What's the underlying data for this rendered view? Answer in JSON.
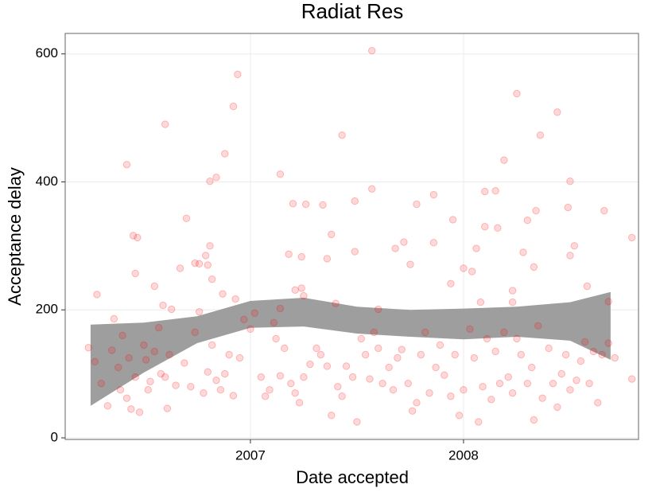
{
  "chart_data": {
    "type": "scatter",
    "title": "Radiat Res",
    "x_label": "Date accepted",
    "y_label": "Acceptance delay",
    "xlim": [
      2006.131,
      2008.821
    ],
    "ylim": [
      -2.5,
      632
    ],
    "xticks": [
      2007,
      2008
    ],
    "yticks": [
      0,
      200,
      400,
      600
    ],
    "grid": true,
    "series": [
      {
        "color": "#ff0000",
        "x": [
          2007.57,
          2006.94,
          2006.92,
          2008.25,
          2008.44,
          2006.6,
          2008.36,
          2007.43,
          2008.19,
          2006.42,
          2007.14,
          2008.5,
          2006.88,
          2006.84,
          2006.81,
          2007.57,
          2008.1,
          2008.15,
          2007.86,
          2007.49,
          2007.2,
          2007.26,
          2007.34,
          2007.78,
          2008.49,
          2008.66,
          2007.95,
          2008.3,
          2008.34,
          2006.7,
          2006.45,
          2006.47,
          2007.38,
          2008.79,
          2007.72,
          2007.86,
          2008.1,
          2008.16,
          2008.52,
          2006.81,
          2007.68,
          2007.49,
          2007.18,
          2008.06,
          2008.28,
          2008.5,
          2006.79,
          2007.24,
          2007.36,
          2006.74,
          2006.76,
          2006.67,
          2006.8,
          2007.75,
          2008.33,
          2008.0,
          2008.04,
          2006.46,
          2006.82,
          2006.55,
          2007.24,
          2007.94,
          2008.23,
          2008.58,
          2007.21,
          2006.28,
          2006.87,
          2006.93,
          2007.25,
          2008.68,
          2008.23,
          2006.59,
          2007.4,
          2008.08,
          2007.6,
          2007.14,
          2006.63,
          2006.76,
          2006.24,
          2006.27,
          2006.3,
          2006.33,
          2006.35,
          2006.36,
          2006.38,
          2006.39,
          2006.4,
          2006.42,
          2006.43,
          2006.44,
          2006.46,
          2006.48,
          2006.5,
          2006.51,
          2006.52,
          2006.53,
          2006.55,
          2006.57,
          2006.58,
          2006.6,
          2006.61,
          2006.62,
          2006.65,
          2006.69,
          2006.72,
          2006.74,
          2006.78,
          2006.8,
          2006.82,
          2006.84,
          2006.86,
          2006.88,
          2006.9,
          2006.92,
          2006.95,
          2006.97,
          2007.0,
          2007.02,
          2007.05,
          2007.07,
          2007.09,
          2007.11,
          2007.12,
          2007.14,
          2007.16,
          2007.19,
          2007.21,
          2007.23,
          2007.25,
          2007.28,
          2007.31,
          2007.33,
          2007.36,
          2007.38,
          2007.41,
          2007.43,
          2007.45,
          2007.48,
          2007.5,
          2007.52,
          2007.54,
          2007.56,
          2007.58,
          2007.6,
          2007.62,
          2007.65,
          2007.67,
          2007.69,
          2007.71,
          2007.74,
          2007.76,
          2007.78,
          2007.8,
          2007.82,
          2007.84,
          2007.87,
          2007.89,
          2007.91,
          2007.94,
          2007.96,
          2007.98,
          2008.0,
          2008.03,
          2008.05,
          2008.07,
          2008.09,
          2008.11,
          2008.13,
          2008.15,
          2008.17,
          2008.19,
          2008.21,
          2008.23,
          2008.25,
          2008.27,
          2008.3,
          2008.32,
          2008.33,
          2008.35,
          2008.37,
          2008.4,
          2008.42,
          2008.44,
          2008.46,
          2008.48,
          2008.5,
          2008.53,
          2008.55,
          2008.57,
          2008.59,
          2008.61,
          2008.63,
          2008.65,
          2008.68,
          2008.71,
          2008.79
        ],
        "values": [
          605,
          568,
          518,
          538,
          509,
          490,
          473,
          473,
          434,
          427,
          412,
          401,
          444,
          407,
          401,
          389,
          385,
          386,
          380,
          370,
          366,
          365,
          364,
          365,
          360,
          355,
          341,
          340,
          355,
          343,
          316,
          313,
          318,
          313,
          306,
          305,
          330,
          328,
          300,
          300,
          296,
          291,
          287,
          296,
          290,
          285,
          285,
          283,
          280,
          273,
          272,
          265,
          270,
          271,
          267,
          265,
          260,
          257,
          248,
          237,
          234,
          241,
          230,
          237,
          231,
          224,
          225,
          217,
          222,
          213,
          212,
          207,
          210,
          212,
          201,
          202,
          201,
          197,
          141,
          119,
          85,
          50,
          137,
          186,
          110,
          75,
          160,
          62,
          125,
          45,
          95,
          40,
          145,
          122,
          75,
          88,
          135,
          172,
          100,
          95,
          46,
          130,
          82,
          117,
          80,
          165,
          70,
          103,
          145,
          90,
          75,
          100,
          130,
          66,
          125,
          185,
          170,
          195,
          95,
          65,
          75,
          180,
          155,
          97,
          140,
          85,
          70,
          55,
          95,
          115,
          140,
          130,
          112,
          35,
          80,
          65,
          112,
          95,
          25,
          155,
          130,
          92,
          165,
          140,
          85,
          110,
          75,
          125,
          138,
          85,
          42,
          55,
          130,
          165,
          70,
          110,
          145,
          98,
          65,
          130,
          35,
          75,
          170,
          125,
          25,
          80,
          155,
          60,
          135,
          85,
          165,
          95,
          70,
          155,
          130,
          85,
          110,
          28,
          175,
          62,
          140,
          85,
          48,
          100,
          130,
          75,
          90,
          120,
          150,
          85,
          135,
          55,
          130,
          148,
          125,
          92
        ]
      }
    ],
    "band": {
      "color": "#999999",
      "x": [
        2006.25,
        2006.5,
        2006.75,
        2007.0,
        2007.25,
        2007.5,
        2007.75,
        2008.0,
        2008.25,
        2008.5,
        2008.69
      ],
      "upper": [
        177,
        180,
        190,
        214,
        219,
        205,
        200,
        202,
        205,
        212,
        228
      ],
      "lower": [
        50,
        102,
        148,
        172,
        174,
        163,
        158,
        154,
        158,
        152,
        122
      ]
    }
  }
}
